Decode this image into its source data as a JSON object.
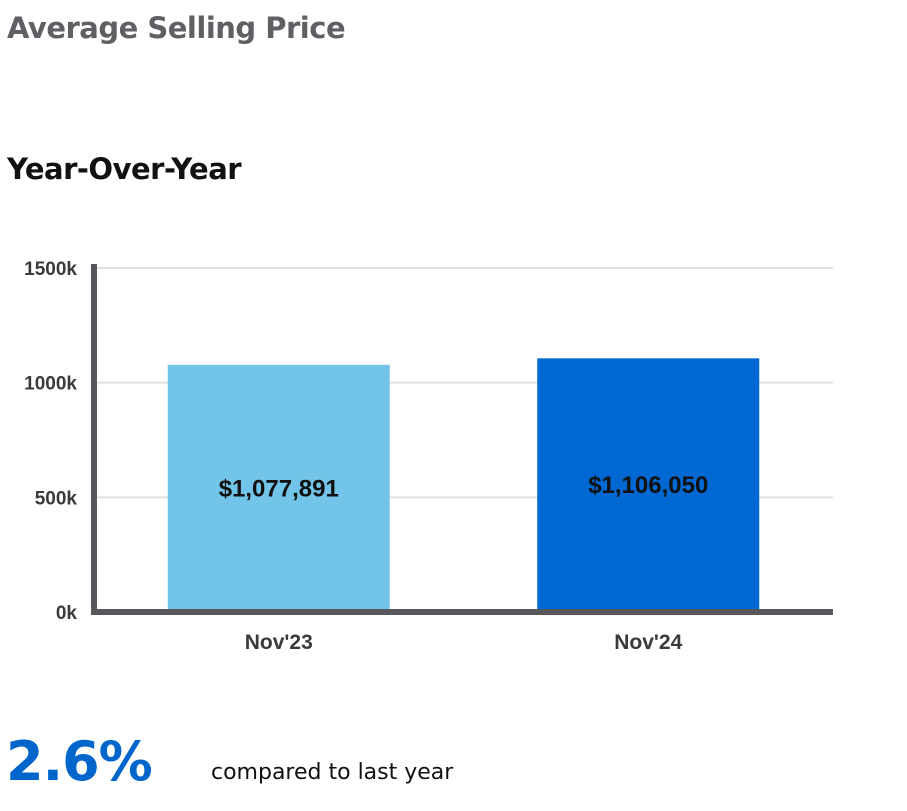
{
  "header": {
    "title": "Average Selling Price"
  },
  "section": {
    "title": "Year-Over-Year"
  },
  "chart_data": {
    "type": "bar",
    "categories": [
      "Nov'23",
      "Nov'24"
    ],
    "values": [
      1077891,
      1106050
    ],
    "value_labels": [
      "$1,077,891",
      "$1,106,050"
    ],
    "bar_colors": [
      "#72c5e8",
      "#0068d3"
    ],
    "ylim": [
      0,
      1500000
    ],
    "yticks": [
      {
        "value": 0,
        "label": "0k"
      },
      {
        "value": 500000,
        "label": "500k"
      },
      {
        "value": 1000000,
        "label": "1000k"
      },
      {
        "value": 1500000,
        "label": "1500k"
      }
    ],
    "grid": true,
    "xlabel": "",
    "ylabel": ""
  },
  "summary": {
    "change": "2.6%",
    "label": "compared to last year",
    "color": "#0066cc"
  }
}
